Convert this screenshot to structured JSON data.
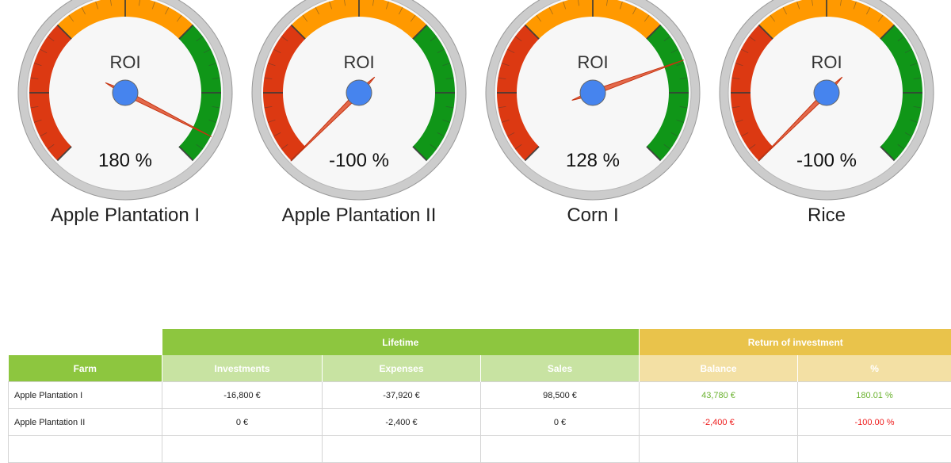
{
  "gauges": [
    {
      "name": "Apple Plantation I",
      "title": "ROI",
      "value_text": "180 %",
      "value": 180
    },
    {
      "name": "Apple Plantation II",
      "title": "ROI",
      "value_text": "-100 %",
      "value": -100
    },
    {
      "name": "Corn I",
      "title": "ROI",
      "value_text": "128 %",
      "value": 128
    },
    {
      "name": "Rice",
      "title": "ROI",
      "value_text": "-100 %",
      "value": -100
    }
  ],
  "gauge_colors": {
    "red": "#dc3912",
    "orange": "#ff9900",
    "green": "#109618",
    "needle": "#dc3912",
    "hub": "#4684ee",
    "rim": "#cccccc",
    "face": "#f7f7f7"
  },
  "table": {
    "group_headers": {
      "lifetime": "Lifetime",
      "roi": "Return of investment"
    },
    "columns": [
      "Farm",
      "Investments",
      "Expenses",
      "Sales",
      "Balance",
      "%"
    ],
    "rows": [
      {
        "farm": "Apple Plantation I",
        "investments": "-16,800 €",
        "expenses": "-37,920 €",
        "sales": "98,500 €",
        "balance": "43,780 €",
        "percent": "180.01 %",
        "status": "pos"
      },
      {
        "farm": "Apple Plantation II",
        "investments": "0 €",
        "expenses": "-2,400 €",
        "sales": "0 €",
        "balance": "-2,400 €",
        "percent": "-100.00 %",
        "status": "neg"
      }
    ]
  },
  "colors": {
    "positive": "#6ab22e",
    "negative": "#ee1c1c",
    "lifetime": "#8dc63f",
    "lifetime_light": "#c8e3a2",
    "roi": "#e9c34b",
    "roi_light": "#f3e0a4"
  }
}
